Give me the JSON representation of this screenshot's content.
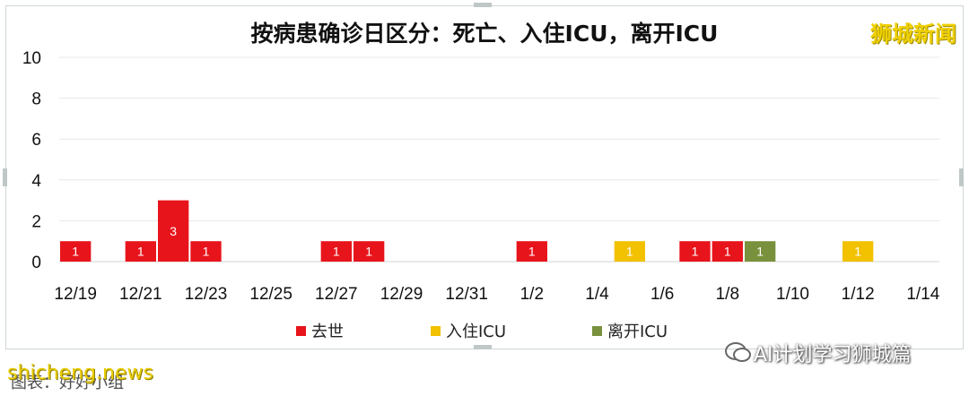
{
  "watermark_top": "狮城新闻",
  "watermark_bottom": "shicheng.news",
  "source_note": "图表：好好小组",
  "wechat_tag": "AI计划学习狮城篇",
  "chart_data": {
    "type": "bar",
    "title": "按病患确诊日区分：死亡、入住ICU，离开ICU",
    "xlabel": "",
    "ylabel": "",
    "ylim": [
      0,
      10
    ],
    "yticks": [
      0,
      2,
      4,
      6,
      8,
      10
    ],
    "x_tick_labels": [
      "12/19",
      "12/21",
      "12/23",
      "12/25",
      "12/27",
      "12/29",
      "12/31",
      "1/2",
      "1/4",
      "1/6",
      "1/8",
      "1/10",
      "1/12",
      "1/14"
    ],
    "categories": [
      "12/19",
      "12/20",
      "12/21",
      "12/22",
      "12/23",
      "12/24",
      "12/25",
      "12/26",
      "12/27",
      "12/28",
      "12/29",
      "12/30",
      "12/31",
      "1/1",
      "1/2",
      "1/3",
      "1/4",
      "1/5",
      "1/6",
      "1/7",
      "1/8",
      "1/9",
      "1/10",
      "1/11",
      "1/12",
      "1/13",
      "1/14"
    ],
    "grid": true,
    "legend_position": "bottom",
    "series": [
      {
        "name": "去世",
        "color": "#e8141b",
        "values": [
          1,
          0,
          1,
          3,
          1,
          0,
          0,
          0,
          1,
          1,
          0,
          0,
          0,
          0,
          1,
          0,
          0,
          0,
          0,
          1,
          1,
          0,
          0,
          0,
          0,
          0,
          0
        ]
      },
      {
        "name": "入住ICU",
        "color": "#f2c100",
        "values": [
          0,
          0,
          0,
          0,
          0,
          0,
          0,
          0,
          0,
          0,
          0,
          0,
          0,
          0,
          0,
          0,
          0,
          1,
          0,
          0,
          0,
          0,
          0,
          0,
          1,
          0,
          0
        ]
      },
      {
        "name": "离开ICU",
        "color": "#79913d",
        "values": [
          0,
          0,
          0,
          0,
          0,
          0,
          0,
          0,
          0,
          0,
          0,
          0,
          0,
          0,
          0,
          0,
          0,
          0,
          0,
          0,
          0,
          1,
          0,
          0,
          0,
          0,
          0
        ]
      }
    ]
  }
}
